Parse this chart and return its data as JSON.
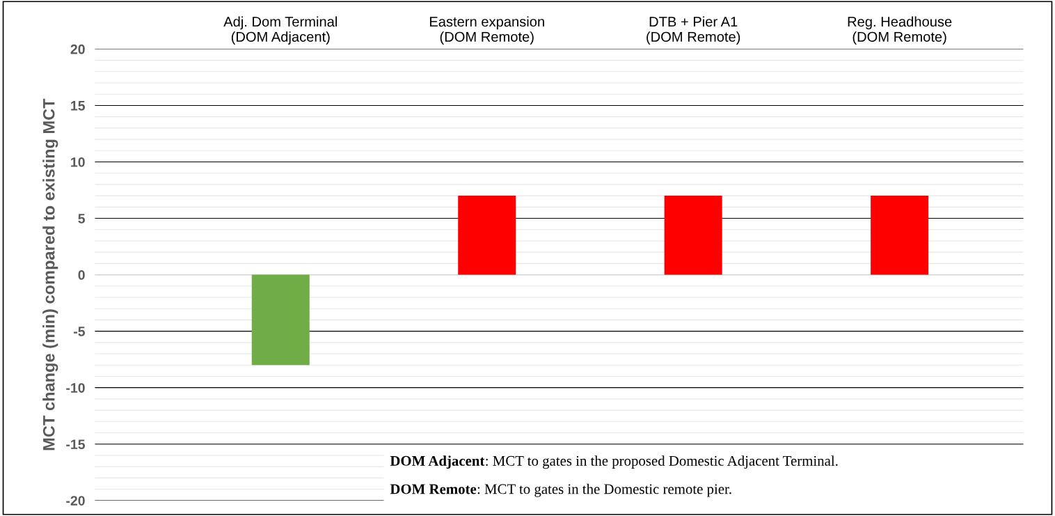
{
  "chart_data": {
    "type": "bar",
    "ylabel": "MCT change (min) compared to existing MCT",
    "categories": [
      "Adj. Dom Terminal\n(DOM Adjacent)",
      "Eastern expansion\n(DOM Remote)",
      "DTB + Pier A1\n(DOM Remote)",
      "Reg. Headhouse\n(DOM Remote)"
    ],
    "values": [
      -8,
      7,
      7,
      7
    ],
    "colors": [
      "#70ad47",
      "#ff0000",
      "#ff0000",
      "#ff0000"
    ],
    "ylim": [
      -20,
      20
    ],
    "yticks": [
      -20,
      -15,
      -10,
      -5,
      0,
      5,
      10,
      15,
      20
    ],
    "grid": "y",
    "annotations": [
      "DOM Adjacent: MCT to gates in the proposed Domestic Adjacent Terminal.",
      "DOM Remote: MCT to gates in the Domestic remote pier."
    ]
  }
}
